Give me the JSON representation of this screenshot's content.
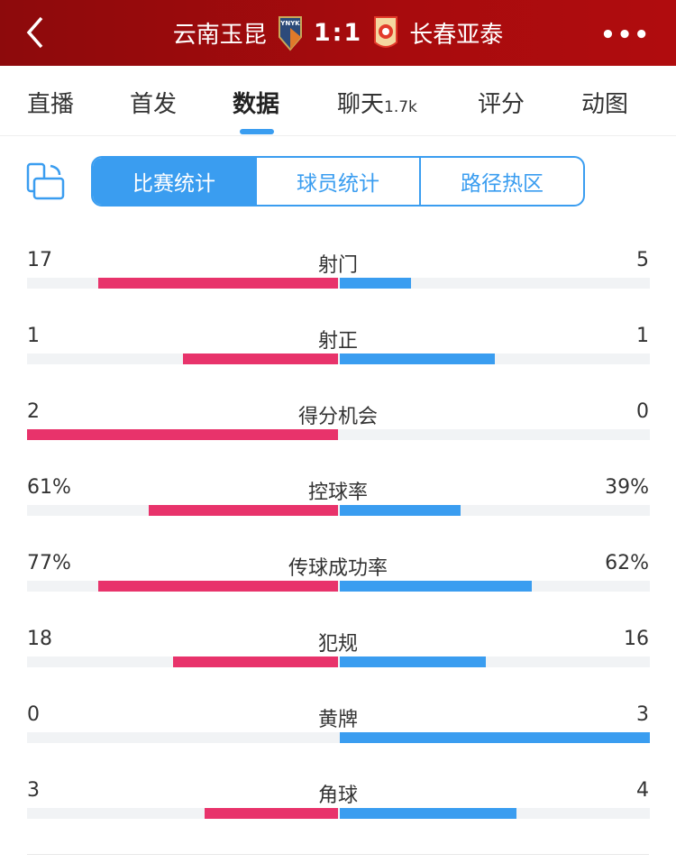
{
  "header": {
    "home": "云南玉昆",
    "score": "1:1",
    "away": "长春亚泰",
    "home_badge_text": "YNYK"
  },
  "tabs": [
    {
      "label": "直播"
    },
    {
      "label": "首发"
    },
    {
      "label": "数据",
      "active": true
    },
    {
      "label": "聊天",
      "badge": "1.7k"
    },
    {
      "label": "评分"
    },
    {
      "label": "动图"
    }
  ],
  "segments": [
    "比赛统计",
    "球员统计",
    "路径热区"
  ],
  "colors": {
    "home": "#e8336b",
    "away": "#3a9df0",
    "header": "#a80b0d"
  },
  "stats": [
    {
      "name": "射门",
      "home": "17",
      "away": "5",
      "home_fill": 0.77,
      "away_fill": 0.23
    },
    {
      "name": "射正",
      "home": "1",
      "away": "1",
      "home_fill": 0.5,
      "away_fill": 0.5
    },
    {
      "name": "得分机会",
      "home": "2",
      "away": "0",
      "home_fill": 1.0,
      "away_fill": 0
    },
    {
      "name": "控球率",
      "home": "61%",
      "away": "39%",
      "home_fill": 0.61,
      "away_fill": 0.39
    },
    {
      "name": "传球成功率",
      "home": "77%",
      "away": "62%",
      "home_fill": 0.77,
      "away_fill": 0.62
    },
    {
      "name": "犯规",
      "home": "18",
      "away": "16",
      "home_fill": 0.53,
      "away_fill": 0.47
    },
    {
      "name": "黄牌",
      "home": "0",
      "away": "3",
      "home_fill": 0,
      "away_fill": 1.0
    },
    {
      "name": "角球",
      "home": "3",
      "away": "4",
      "home_fill": 0.43,
      "away_fill": 0.57
    }
  ]
}
